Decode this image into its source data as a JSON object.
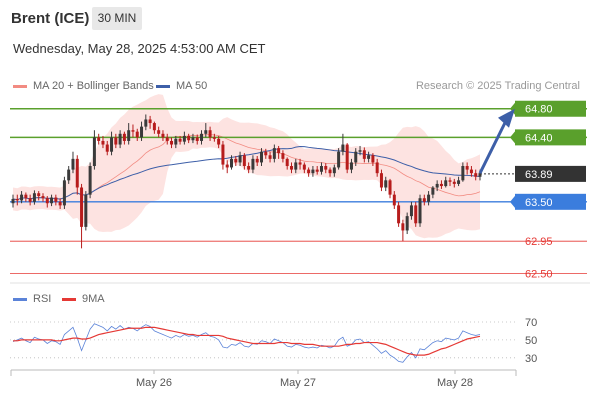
{
  "header": {
    "title": "Brent (ICE)",
    "timeframe": "30 MIN",
    "datetime": "Wednesday, May 28, 2025 4:53:00 AM CET"
  },
  "legend": {
    "bollinger_label": "MA 20 + Bollinger Bands",
    "ma50_label": "MA 50",
    "credit": "Research © 2025 Trading Central",
    "rsi_label": "RSI",
    "ma9_label": "9MA"
  },
  "colors": {
    "bollinger": "#f28b82",
    "band_fill": "#fde3e1",
    "ma50": "#3d5fa8",
    "resistance": "#5aa02c",
    "current": "#333333",
    "pivot": "#3b7ddd",
    "support": "#e53935",
    "rsi": "#5b83d8",
    "ma9": "#e53935",
    "candle_up": "#3a3a3a",
    "candle_down": "#b71c1c"
  },
  "chart_data": [
    {
      "type": "candlestick",
      "title": "Brent (ICE)",
      "timeframe": "30 MIN",
      "ylim": [
        62.38,
        64.95
      ],
      "x_tick_labels": [
        "May 26",
        "May 27",
        "May 28"
      ],
      "series_close": [
        63.54,
        63.52,
        63.6,
        63.55,
        63.5,
        63.62,
        63.58,
        63.55,
        63.48,
        63.56,
        63.5,
        63.45,
        63.8,
        63.95,
        64.1,
        63.7,
        63.15,
        63.6,
        64.0,
        64.4,
        64.35,
        64.3,
        64.2,
        64.4,
        64.3,
        64.45,
        64.35,
        64.5,
        64.48,
        64.4,
        64.55,
        64.65,
        64.6,
        64.5,
        64.45,
        64.4,
        64.35,
        64.3,
        64.38,
        64.34,
        64.42,
        64.36,
        64.4,
        64.35,
        64.45,
        64.5,
        64.4,
        64.38,
        64.3,
        64.02,
        63.98,
        64.1,
        64.05,
        64.15,
        64.0,
        63.95,
        64.1,
        64.05,
        64.2,
        64.15,
        64.1,
        64.25,
        64.18,
        64.1,
        64.0,
        63.95,
        64.05,
        64.02,
        63.95,
        63.9,
        63.95,
        63.92,
        64.0,
        63.95,
        63.9,
        63.98,
        64.2,
        64.3,
        63.95,
        64.05,
        64.2,
        64.22,
        64.1,
        64.15,
        64.05,
        63.9,
        63.7,
        63.8,
        63.6,
        63.45,
        63.2,
        63.1,
        63.3,
        63.45,
        63.2,
        63.55,
        63.5,
        63.6,
        63.7,
        63.75,
        63.72,
        63.8,
        63.78,
        63.75,
        63.8,
        64.0,
        63.95,
        63.9,
        63.85,
        63.9
      ],
      "series_open": [
        63.48,
        63.54,
        63.52,
        63.6,
        63.55,
        63.5,
        63.62,
        63.58,
        63.55,
        63.48,
        63.56,
        63.5,
        63.45,
        63.8,
        63.95,
        64.1,
        63.7,
        63.15,
        63.6,
        64.0,
        64.4,
        64.35,
        64.3,
        64.2,
        64.4,
        64.3,
        64.45,
        64.35,
        64.5,
        64.48,
        64.4,
        64.55,
        64.65,
        64.6,
        64.5,
        64.45,
        64.4,
        64.35,
        64.3,
        64.38,
        64.34,
        64.42,
        64.36,
        64.4,
        64.35,
        64.45,
        64.5,
        64.4,
        64.38,
        64.3,
        64.02,
        63.98,
        64.1,
        64.05,
        64.15,
        64.0,
        63.95,
        64.1,
        64.05,
        64.2,
        64.15,
        64.1,
        64.25,
        64.18,
        64.1,
        64.0,
        63.95,
        64.05,
        64.02,
        63.95,
        63.9,
        63.95,
        63.92,
        64.0,
        63.95,
        63.9,
        63.98,
        64.2,
        64.3,
        63.95,
        64.05,
        64.2,
        64.22,
        64.1,
        64.15,
        64.05,
        63.9,
        63.7,
        63.8,
        63.6,
        63.45,
        63.2,
        63.1,
        63.3,
        63.45,
        63.2,
        63.55,
        63.5,
        63.6,
        63.7,
        63.75,
        63.72,
        63.8,
        63.78,
        63.75,
        63.8,
        64.0,
        63.95,
        63.9,
        63.85
      ],
      "series_high": [
        63.6,
        63.6,
        63.65,
        63.63,
        63.6,
        63.66,
        63.65,
        63.62,
        63.58,
        63.6,
        63.6,
        63.55,
        63.85,
        64.0,
        64.2,
        64.15,
        63.75,
        63.65,
        64.05,
        64.5,
        64.45,
        64.42,
        64.35,
        64.48,
        64.45,
        64.5,
        64.48,
        64.6,
        64.58,
        64.52,
        64.62,
        64.72,
        64.7,
        64.62,
        64.55,
        64.5,
        64.45,
        64.4,
        64.42,
        64.42,
        64.48,
        64.45,
        64.45,
        64.44,
        64.5,
        64.6,
        64.55,
        64.45,
        64.42,
        64.35,
        64.08,
        64.15,
        64.14,
        64.2,
        64.18,
        64.05,
        64.15,
        64.14,
        64.25,
        64.24,
        64.2,
        64.3,
        64.28,
        64.22,
        64.12,
        64.05,
        64.1,
        64.1,
        64.05,
        63.98,
        64.0,
        64.0,
        64.05,
        64.04,
        63.98,
        64.02,
        64.25,
        64.45,
        64.32,
        64.1,
        64.25,
        64.28,
        64.26,
        64.2,
        64.18,
        64.1,
        63.95,
        63.85,
        63.82,
        63.65,
        63.5,
        63.25,
        63.35,
        63.5,
        63.5,
        63.6,
        63.6,
        63.65,
        63.72,
        63.8,
        63.8,
        63.85,
        63.84,
        63.82,
        63.85,
        64.05,
        64.05,
        64.0,
        63.95,
        63.95
      ],
      "series_low": [
        63.42,
        63.45,
        63.48,
        63.5,
        63.45,
        63.46,
        63.52,
        63.5,
        63.42,
        63.44,
        63.45,
        63.4,
        63.4,
        63.75,
        63.9,
        63.6,
        62.85,
        63.1,
        63.55,
        63.95,
        64.3,
        64.25,
        64.15,
        64.15,
        64.25,
        64.25,
        64.3,
        64.3,
        64.4,
        64.35,
        64.35,
        64.5,
        64.52,
        64.45,
        64.4,
        64.35,
        64.3,
        64.25,
        64.25,
        64.3,
        64.3,
        64.32,
        64.32,
        64.3,
        64.3,
        64.4,
        64.35,
        64.34,
        64.25,
        63.95,
        63.9,
        63.95,
        64.0,
        64.0,
        63.95,
        63.9,
        63.9,
        64.0,
        64.0,
        64.1,
        64.05,
        64.05,
        64.1,
        64.05,
        63.95,
        63.9,
        63.9,
        63.95,
        63.9,
        63.85,
        63.85,
        63.88,
        63.88,
        63.9,
        63.85,
        63.85,
        63.95,
        64.15,
        63.9,
        63.9,
        64.0,
        64.15,
        64.05,
        64.05,
        64.0,
        63.85,
        63.65,
        63.65,
        63.55,
        63.4,
        63.15,
        62.95,
        63.05,
        63.25,
        63.15,
        63.15,
        63.45,
        63.45,
        63.55,
        63.65,
        63.68,
        63.7,
        63.72,
        63.7,
        63.72,
        63.78,
        63.88,
        63.85,
        63.8,
        63.8
      ],
      "horizontal_levels": [
        {
          "value": 64.8,
          "label": "64.80",
          "kind": "resistance"
        },
        {
          "value": 64.4,
          "label": "64.40",
          "kind": "resistance"
        },
        {
          "value": 63.89,
          "label": "63.89",
          "kind": "current"
        },
        {
          "value": 63.5,
          "label": "63.50",
          "kind": "pivot"
        },
        {
          "value": 62.95,
          "label": "62.95",
          "kind": "support"
        },
        {
          "value": 62.5,
          "label": "62.50",
          "kind": "support"
        }
      ]
    },
    {
      "type": "line",
      "title": "RSI",
      "ylim": [
        22,
        80
      ],
      "y_ticks": [
        70,
        50,
        30
      ],
      "series": [
        {
          "name": "RSI",
          "values": [
            48,
            50,
            52,
            49,
            47,
            53,
            51,
            50,
            46,
            49,
            48,
            45,
            56,
            60,
            64,
            52,
            38,
            50,
            62,
            68,
            66,
            64,
            60,
            65,
            62,
            66,
            62,
            64,
            63,
            60,
            64,
            67,
            65,
            60,
            58,
            56,
            54,
            52,
            55,
            53,
            56,
            54,
            55,
            53,
            56,
            58,
            54,
            53,
            50,
            42,
            41,
            45,
            44,
            47,
            43,
            42,
            46,
            45,
            49,
            48,
            46,
            51,
            49,
            47,
            43,
            42,
            45,
            44,
            42,
            41,
            42,
            41,
            44,
            43,
            41,
            43,
            50,
            53,
            43,
            45,
            50,
            51,
            47,
            48,
            44,
            40,
            35,
            38,
            33,
            30,
            26,
            25,
            31,
            36,
            30,
            40,
            39,
            43,
            47,
            49,
            48,
            52,
            51,
            50,
            52,
            60,
            58,
            56,
            55,
            56
          ]
        },
        {
          "name": "9MA",
          "values": [
            49,
            49,
            50,
            50,
            50,
            50,
            50,
            50,
            50,
            50,
            49,
            49,
            50,
            51,
            52,
            52,
            51,
            51,
            52,
            54,
            56,
            57,
            58,
            59,
            60,
            61,
            62,
            63,
            63,
            63,
            63,
            64,
            64,
            64,
            63,
            62,
            61,
            60,
            59,
            58,
            57,
            56,
            56,
            55,
            55,
            55,
            55,
            55,
            55,
            54,
            52,
            51,
            50,
            49,
            48,
            47,
            46,
            46,
            46,
            46,
            46,
            46,
            47,
            47,
            47,
            46,
            46,
            46,
            45,
            45,
            45,
            44,
            43,
            43,
            43,
            43,
            43,
            44,
            45,
            45,
            46,
            46,
            47,
            47,
            47,
            47,
            46,
            45,
            43,
            41,
            39,
            37,
            35,
            34,
            33,
            33,
            33,
            34,
            36,
            38,
            40,
            41,
            43,
            45,
            47,
            49,
            51,
            52,
            53,
            54
          ]
        }
      ]
    }
  ]
}
